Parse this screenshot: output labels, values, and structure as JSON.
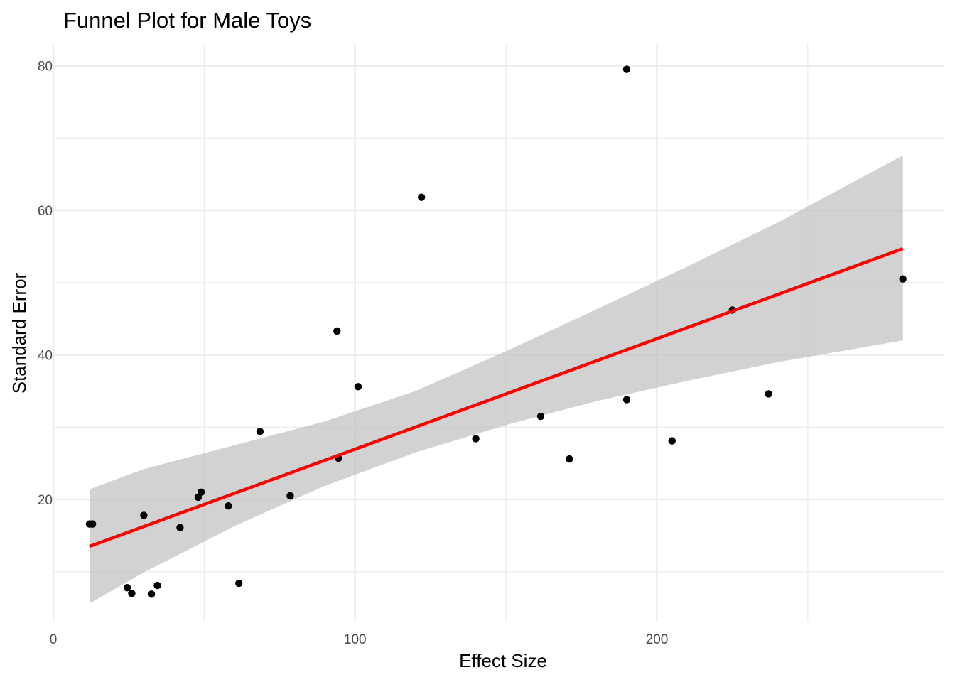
{
  "chart_data": {
    "type": "scatter",
    "title": "Funnel Plot for Male Toys",
    "xlabel": "Effect Size",
    "ylabel": "Standard Error",
    "xlim": [
      0,
      295
    ],
    "ylim": [
      3,
      83
    ],
    "x_major_ticks": [
      0,
      100,
      200
    ],
    "x_tick_labels": [
      "0",
      "100",
      "200"
    ],
    "x_minor_ticks": [
      50,
      150,
      250
    ],
    "y_major_ticks": [
      20,
      40,
      60,
      80
    ],
    "y_tick_labels": [
      "20",
      "40",
      "60",
      "80"
    ],
    "y_minor_ticks": [
      10,
      30,
      50,
      70
    ],
    "grid": true,
    "colors": {
      "points": "#000000",
      "fit_line": "#ff0000",
      "confidence_band": "#bfbfbf",
      "grid": "#ebebeb"
    },
    "points": [
      {
        "x": 12,
        "y": 16.6
      },
      {
        "x": 13,
        "y": 16.6
      },
      {
        "x": 24.5,
        "y": 7.8
      },
      {
        "x": 26,
        "y": 7
      },
      {
        "x": 30,
        "y": 17.8
      },
      {
        "x": 32.5,
        "y": 6.9
      },
      {
        "x": 34.5,
        "y": 8.1
      },
      {
        "x": 42,
        "y": 16.1
      },
      {
        "x": 48,
        "y": 20.3
      },
      {
        "x": 49,
        "y": 21
      },
      {
        "x": 58,
        "y": 19.1
      },
      {
        "x": 61.5,
        "y": 8.4
      },
      {
        "x": 68.5,
        "y": 29.4
      },
      {
        "x": 78.5,
        "y": 20.5
      },
      {
        "x": 94,
        "y": 43.3
      },
      {
        "x": 94.5,
        "y": 25.7
      },
      {
        "x": 101,
        "y": 35.6
      },
      {
        "x": 122,
        "y": 61.8
      },
      {
        "x": 140,
        "y": 28.4
      },
      {
        "x": 161.5,
        "y": 31.5
      },
      {
        "x": 171,
        "y": 25.6
      },
      {
        "x": 190,
        "y": 79.5
      },
      {
        "x": 190,
        "y": 33.8
      },
      {
        "x": 205,
        "y": 28.1
      },
      {
        "x": 225,
        "y": 46.2
      },
      {
        "x": 237,
        "y": 34.6
      },
      {
        "x": 281.5,
        "y": 50.5
      }
    ],
    "fit_line": {
      "x": [
        12,
        281.5
      ],
      "y": [
        13.5,
        54.7
      ]
    },
    "confidence_band": {
      "x": [
        12,
        30,
        60,
        90,
        120,
        150,
        180,
        210,
        240,
        281.5
      ],
      "upper": [
        21.4,
        24.2,
        27.5,
        30.8,
        35,
        40.5,
        46.3,
        52.2,
        58.3,
        67.6
      ],
      "lower": [
        5.6,
        9.9,
        16.3,
        21.9,
        26.5,
        30.3,
        33.6,
        36.4,
        39,
        42
      ]
    }
  }
}
